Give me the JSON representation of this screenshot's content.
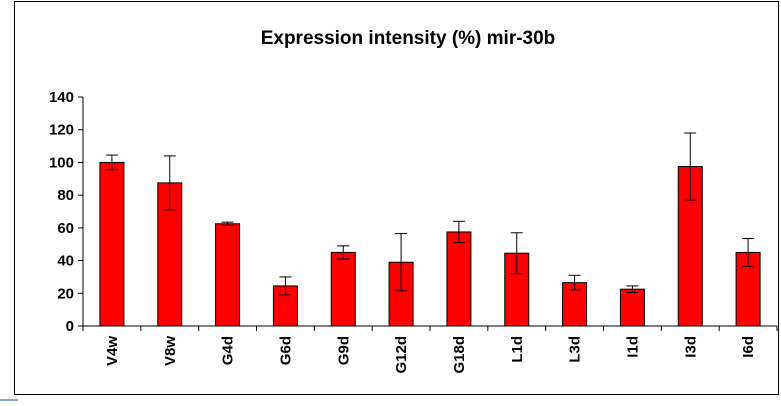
{
  "chart_data": {
    "type": "bar",
    "title": "Expression intensity (%) mir-30b",
    "xlabel": "",
    "ylabel": "",
    "categories": [
      "V4w",
      "V8w",
      "G4d",
      "G6d",
      "G9d",
      "G12d",
      "G18d",
      "L1d",
      "L3d",
      "I1d",
      "I3d",
      "I6d"
    ],
    "series": [
      {
        "values": [
          100,
          87.5,
          62.5,
          24.5,
          45,
          39,
          57.5,
          44.5,
          26.5,
          22.5,
          97.5,
          45
        ],
        "errors": [
          4.5,
          16.5,
          1,
          5.5,
          4,
          17.5,
          6.5,
          12.5,
          4.5,
          2,
          20.5,
          8.5
        ],
        "color": "#ff0000"
      }
    ],
    "ylim": [
      0,
      140
    ],
    "yticks": [
      0,
      20,
      40,
      60,
      80,
      100,
      120,
      140
    ],
    "grid": false,
    "legend": "none"
  }
}
